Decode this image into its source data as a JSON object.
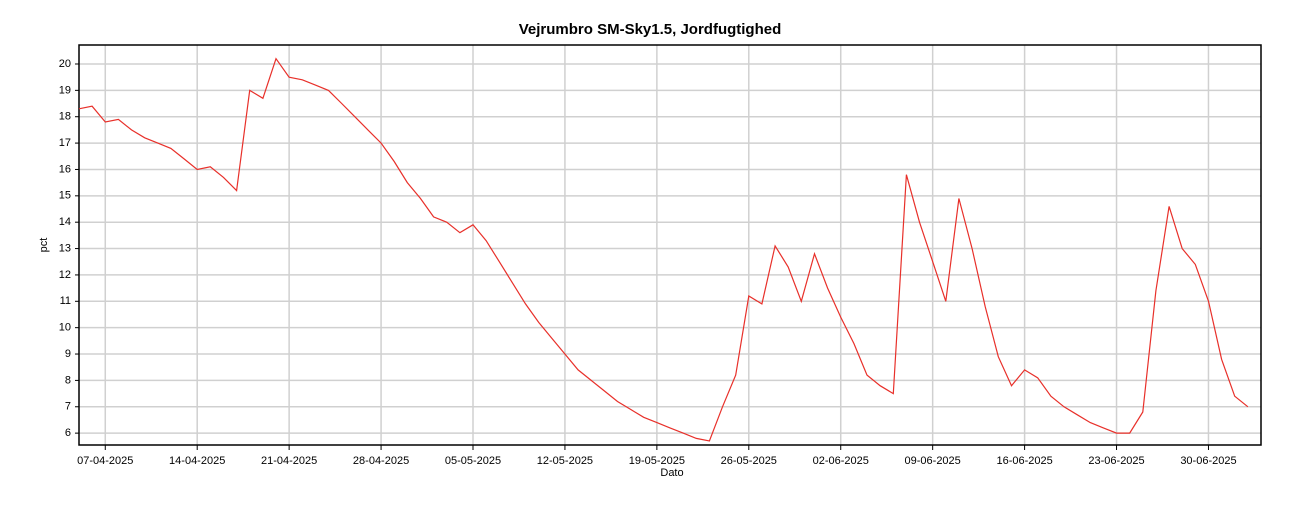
{
  "chart_data": {
    "type": "line",
    "title": "Vejrumbro SM-Sky1.5, Jordfugtighed",
    "x_label": "Dato",
    "y_label": "pct",
    "x": [
      "05-04-2025",
      "06-04-2025",
      "07-04-2025",
      "08-04-2025",
      "09-04-2025",
      "10-04-2025",
      "11-04-2025",
      "12-04-2025",
      "13-04-2025",
      "14-04-2025",
      "15-04-2025",
      "16-04-2025",
      "17-04-2025",
      "18-04-2025",
      "19-04-2025",
      "20-04-2025",
      "21-04-2025",
      "22-04-2025",
      "23-04-2025",
      "24-04-2025",
      "25-04-2025",
      "26-04-2025",
      "27-04-2025",
      "28-04-2025",
      "29-04-2025",
      "30-04-2025",
      "01-05-2025",
      "02-05-2025",
      "03-05-2025",
      "04-05-2025",
      "05-05-2025",
      "06-05-2025",
      "07-05-2025",
      "08-05-2025",
      "09-05-2025",
      "10-05-2025",
      "11-05-2025",
      "12-05-2025",
      "13-05-2025",
      "14-05-2025",
      "15-05-2025",
      "16-05-2025",
      "17-05-2025",
      "18-05-2025",
      "19-05-2025",
      "20-05-2025",
      "21-05-2025",
      "22-05-2025",
      "23-05-2025",
      "24-05-2025",
      "25-05-2025",
      "26-05-2025",
      "27-05-2025",
      "28-05-2025",
      "29-05-2025",
      "30-05-2025",
      "31-05-2025",
      "01-06-2025",
      "02-06-2025",
      "03-06-2025",
      "04-06-2025",
      "05-06-2025",
      "06-06-2025",
      "07-06-2025",
      "08-06-2025",
      "09-06-2025",
      "10-06-2025",
      "11-06-2025",
      "12-06-2025",
      "13-06-2025",
      "14-06-2025",
      "15-06-2025",
      "16-06-2025",
      "17-06-2025",
      "18-06-2025",
      "19-06-2025",
      "20-06-2025",
      "21-06-2025",
      "22-06-2025",
      "23-06-2025",
      "24-06-2025",
      "25-06-2025",
      "26-06-2025",
      "27-06-2025",
      "28-06-2025",
      "29-06-2025",
      "30-06-2025",
      "01-07-2025",
      "02-07-2025",
      "03-07-2025"
    ],
    "series": [
      {
        "name": "Jordfugtighed",
        "color": "#e8302a",
        "values": [
          18.3,
          18.4,
          17.8,
          17.9,
          17.5,
          17.2,
          17.0,
          16.8,
          16.4,
          16.0,
          16.1,
          15.7,
          15.2,
          19.0,
          18.7,
          20.2,
          19.5,
          19.4,
          19.2,
          19.0,
          18.5,
          18.0,
          17.5,
          17.0,
          16.3,
          15.5,
          14.9,
          14.2,
          14.0,
          13.6,
          13.9,
          13.3,
          12.5,
          11.7,
          10.9,
          10.2,
          9.6,
          9.0,
          8.4,
          8.0,
          7.6,
          7.2,
          6.9,
          6.6,
          6.4,
          6.2,
          6.0,
          5.8,
          5.7,
          7.0,
          8.2,
          11.2,
          10.9,
          13.1,
          12.3,
          11.0,
          12.8,
          11.5,
          10.4,
          9.4,
          8.2,
          7.8,
          7.5,
          15.8,
          14.0,
          12.5,
          11.0,
          14.9,
          13.0,
          10.8,
          8.9,
          7.8,
          8.4,
          8.1,
          7.4,
          7.0,
          6.7,
          6.4,
          6.2,
          6.0,
          6.0,
          6.8,
          11.4,
          14.6,
          13.0,
          12.4,
          11.0,
          8.8,
          7.4,
          7.0
        ]
      }
    ],
    "xlim": [
      "05-04-2025",
      "04-07-2025"
    ],
    "xticks": [
      "07-04-2025",
      "14-04-2025",
      "21-04-2025",
      "28-04-2025",
      "05-05-2025",
      "12-05-2025",
      "19-05-2025",
      "26-05-2025",
      "02-06-2025",
      "09-06-2025",
      "16-06-2025",
      "23-06-2025",
      "30-06-2025"
    ],
    "ylim": [
      5.55,
      20.72
    ],
    "yticks": [
      6,
      7,
      8,
      9,
      10,
      11,
      12,
      13,
      14,
      15,
      16,
      17,
      18,
      19,
      20
    ],
    "grid": true
  }
}
